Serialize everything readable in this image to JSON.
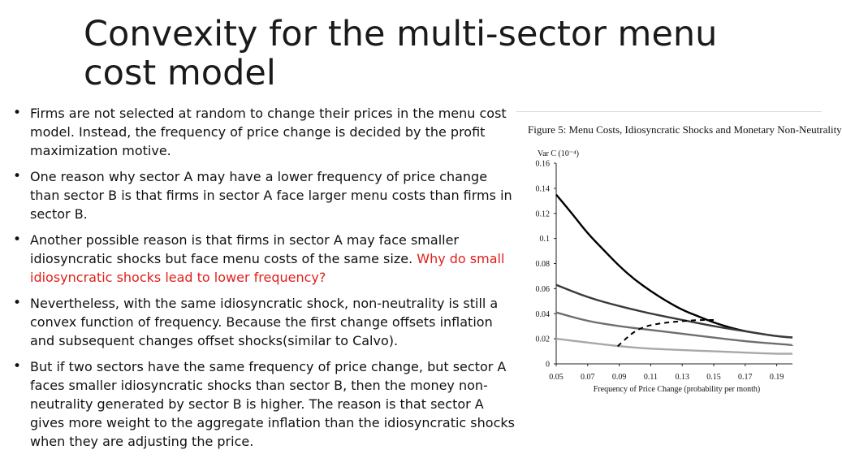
{
  "slide": {
    "title": "Convexity for the multi-sector menu\ncost model",
    "bullets": [
      {
        "text": "Firms are not selected at random to change their prices in the menu cost model. Instead, the frequency of price change is decided by the profit maximization motive.",
        "highlight": ""
      },
      {
        "text": "One reason why sector A may have a lower frequency of price change than sector B is that firms in sector A face larger menu costs than firms in sector B.",
        "highlight": ""
      },
      {
        "text": "Another possible reason is that firms in sector A may face smaller idiosyncratic shocks but face menu costs of the same size. ",
        "highlight": "Why do small idiosyncratic shocks lead to lower frequency?"
      },
      {
        "text": "Nevertheless, with the same idiosyncratic shock, non-neutrality is still a convex function of frequency. Because the first change offsets inflation and subsequent changes offset shocks(similar to Calvo).",
        "highlight": ""
      },
      {
        "text": "But if two sectors have the same frequency of price change, but sector A faces smaller idiosyncratic shocks than sector B, then the money non-neutrality generated by sector B is higher. The reason is that sector A gives more weight to the aggregate inflation than the idiosyncratic shocks when they are adjusting the price.",
        "highlight": ""
      }
    ],
    "highlight_color": "#e0201b"
  },
  "chart_data": {
    "type": "line",
    "title": "Figure 5: Menu Costs, Idiosyncratic Shocks and Monetary Non-Neutrality",
    "ylabel": "Var C (10⁻⁴)",
    "xlabel": "Frequency of Price Change (probability per month)",
    "xlim": [
      0.05,
      0.2
    ],
    "ylim": [
      0,
      0.16
    ],
    "xticks": [
      "0.05",
      "0.07",
      "0.09",
      "0.11",
      "0.13",
      "0.15",
      "0.17",
      "0.19"
    ],
    "yticks": [
      "0",
      "0.02",
      "0.04",
      "0.06",
      "0.08",
      "0.1",
      "0.12",
      "0.14",
      "0.16"
    ],
    "grid": false,
    "series": [
      {
        "color": "#000000",
        "dash": false,
        "x": [
          0.05,
          0.06,
          0.07,
          0.08,
          0.09,
          0.1,
          0.11,
          0.12,
          0.13,
          0.14,
          0.15,
          0.16,
          0.17,
          0.18,
          0.19,
          0.2
        ],
        "values": [
          0.135,
          0.12,
          0.104,
          0.091,
          0.078,
          0.067,
          0.058,
          0.05,
          0.043,
          0.038,
          0.033,
          0.029,
          0.026,
          0.024,
          0.022,
          0.021
        ]
      },
      {
        "color": "#3a3a3a",
        "dash": false,
        "x": [
          0.05,
          0.07,
          0.09,
          0.11,
          0.13,
          0.15,
          0.17,
          0.19,
          0.2
        ],
        "values": [
          0.063,
          0.053,
          0.046,
          0.04,
          0.035,
          0.03,
          0.026,
          0.022,
          0.021
        ]
      },
      {
        "color": "#6e6e6e",
        "dash": false,
        "x": [
          0.05,
          0.07,
          0.09,
          0.11,
          0.13,
          0.15,
          0.17,
          0.19,
          0.2
        ],
        "values": [
          0.041,
          0.034,
          0.03,
          0.027,
          0.024,
          0.021,
          0.018,
          0.016,
          0.015
        ]
      },
      {
        "color": "#a8a8a8",
        "dash": false,
        "x": [
          0.05,
          0.07,
          0.09,
          0.11,
          0.13,
          0.15,
          0.17,
          0.19,
          0.2
        ],
        "values": [
          0.02,
          0.017,
          0.014,
          0.012,
          0.011,
          0.01,
          0.009,
          0.008,
          0.008
        ]
      },
      {
        "color": "#000000",
        "dash": true,
        "x": [
          0.089,
          0.095,
          0.1,
          0.105,
          0.11,
          0.12,
          0.13,
          0.14,
          0.15
        ],
        "values": [
          0.014,
          0.021,
          0.026,
          0.029,
          0.031,
          0.033,
          0.034,
          0.035,
          0.035
        ]
      }
    ]
  }
}
